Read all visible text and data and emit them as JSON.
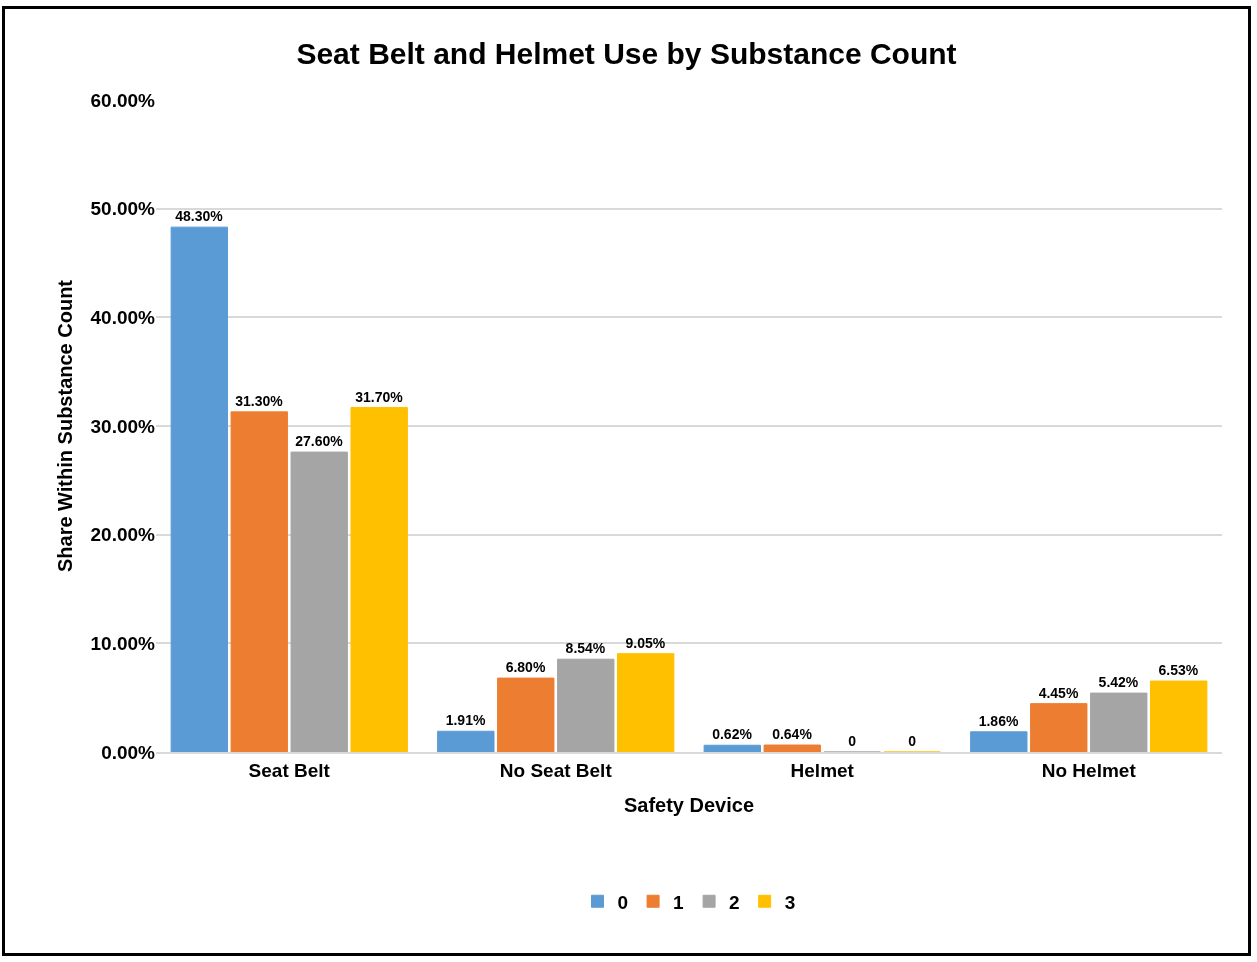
{
  "chart_data": {
    "type": "bar",
    "title": "Seat Belt and Helmet Use by Substance Count",
    "xlabel": "Safety Device",
    "ylabel": "Share Within Substance Count",
    "categories": [
      "Seat Belt",
      "No Seat Belt",
      "Helmet",
      "No Helmet"
    ],
    "series": [
      {
        "name": "0",
        "color": "#5b9bd5",
        "values": [
          48.3,
          1.91,
          0.62,
          1.86
        ],
        "value_labels": [
          "48.30%",
          "1.91%",
          "0.62%",
          "1.86%"
        ]
      },
      {
        "name": "1",
        "color": "#ed7d31",
        "values": [
          31.3,
          6.8,
          0.64,
          4.45
        ],
        "value_labels": [
          "31.30%",
          "6.80%",
          "0.64%",
          "4.45%"
        ]
      },
      {
        "name": "2",
        "color": "#a5a5a5",
        "values": [
          27.6,
          8.54,
          0,
          5.42
        ],
        "value_labels": [
          "27.60%",
          "8.54%",
          "0",
          "5.42%"
        ]
      },
      {
        "name": "3",
        "color": "#ffc000",
        "values": [
          31.7,
          9.05,
          0,
          6.53
        ],
        "value_labels": [
          "31.70%",
          "9.05%",
          "0",
          "6.53%"
        ]
      }
    ],
    "ylim": [
      0,
      60
    ],
    "yticks": [
      {
        "value": 0,
        "label": "0.00%"
      },
      {
        "value": 10,
        "label": "10.00%"
      },
      {
        "value": 20,
        "label": "20.00%"
      },
      {
        "value": 30,
        "label": "30.00%"
      },
      {
        "value": 40,
        "label": "40.00%"
      },
      {
        "value": 50,
        "label": "50.00%"
      },
      {
        "value": 60,
        "label": "60.00%"
      }
    ],
    "grid": "y",
    "legend": "bottom"
  }
}
